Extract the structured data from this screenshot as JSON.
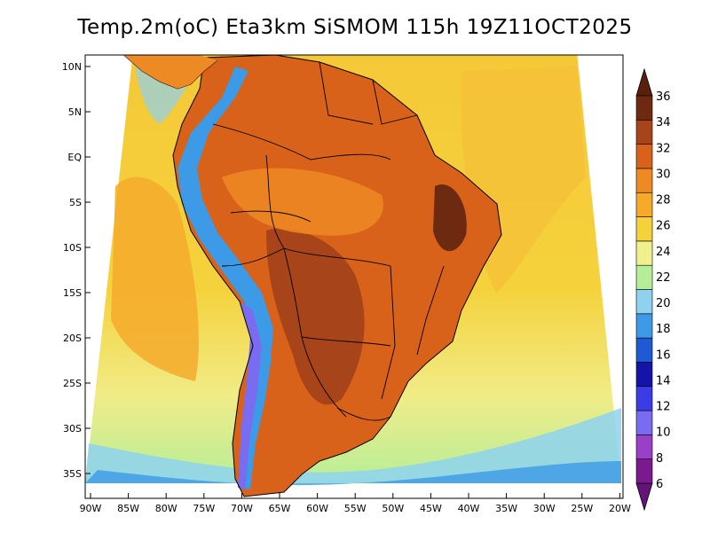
{
  "title": "Temp.2m(oC) Eta3km SiSMOM 115h 19Z11OCT2025",
  "lat_labels": [
    "10N",
    "5N",
    "EQ",
    "5S",
    "10S",
    "15S",
    "20S",
    "25S",
    "30S",
    "35S"
  ],
  "lon_labels": [
    "90W",
    "85W",
    "80W",
    "75W",
    "70W",
    "65W",
    "60W",
    "55W",
    "50W",
    "45W",
    "40W",
    "35W",
    "30W",
    "25W",
    "20W"
  ],
  "colorbar": {
    "levels": [
      "6",
      "8",
      "10",
      "12",
      "14",
      "16",
      "18",
      "20",
      "22",
      "24",
      "26",
      "28",
      "30",
      "32",
      "34",
      "36"
    ],
    "colors": [
      "#7a1a8c",
      "#9a40c8",
      "#7a6cf0",
      "#3c3ce6",
      "#1414a8",
      "#1e5ad2",
      "#3c9ae6",
      "#8ed2f0",
      "#b6ee98",
      "#f0f08c",
      "#f5d23c",
      "#f5aa2c",
      "#ee8a24",
      "#d8621a",
      "#a8441a",
      "#6e2a10"
    ],
    "under_color": "#641478",
    "over_color": "#5a200c"
  },
  "colors": {
    "ocean_warm": "#f5aa2c",
    "ocean_mid": "#f5d23c",
    "ocean_cool": "#f0f08c",
    "land_hot": "#d8621a",
    "land_very_hot": "#a8441a",
    "andes": "#7a6cf0"
  }
}
